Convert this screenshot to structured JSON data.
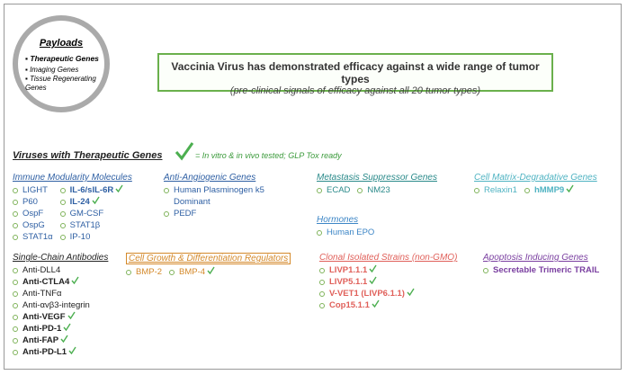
{
  "payloads": {
    "title": "Payloads",
    "items": [
      "Therapeutic Genes",
      "Imaging Genes",
      "Tissue Regenerating Genes"
    ]
  },
  "headline": {
    "title": "Vaccinia Virus has demonstrated efficacy against a wide range of tumor types",
    "subtitle": "(pre-clinical signals of efficacy against all 20 tumor types)"
  },
  "section": {
    "title": "Viruses with Therapeutic Genes",
    "legend": "= In vitro & in vivo tested; GLP Tox ready"
  },
  "groups": [
    {
      "title": "Immune Modularity Molecules",
      "color": "#2e5fa3",
      "columns": [
        [
          {
            "label": "LIGHT"
          },
          {
            "label": "P60"
          },
          {
            "label": "OspF"
          },
          {
            "label": "OspG"
          },
          {
            "label": "STAT1α"
          }
        ],
        [
          {
            "label": "IL-6/sIL-6R",
            "bold": true,
            "check": true
          },
          {
            "label": "IL-24",
            "bold": true,
            "check": true
          },
          {
            "label": "GM-CSF"
          },
          {
            "label": "STAT1β"
          },
          {
            "label": "IP-10"
          }
        ]
      ]
    },
    {
      "title": "Anti-Angiogenic Genes",
      "color": "#2e5fa3",
      "columns": [
        [
          {
            "label": "Human Plasminogen k5 Dominant"
          },
          {
            "label": "PEDF"
          }
        ]
      ]
    },
    {
      "title": "Metastasis Suppressor Genes",
      "color": "#2a8a8a",
      "columns": [
        [
          {
            "label": "ECAD"
          }
        ],
        [
          {
            "label": "NM23"
          }
        ]
      ]
    },
    {
      "title": "Cell Matrix-Degradative Genes",
      "color": "#4fb3c2",
      "columns": [
        [
          {
            "label": "Relaxin1"
          }
        ],
        [
          {
            "label": "hMMP9",
            "bold": true,
            "check": true
          }
        ]
      ]
    },
    {
      "title": "Hormones",
      "color": "#3d86c6",
      "columns": [
        [
          {
            "label": "Human EPO"
          }
        ]
      ]
    },
    {
      "title": "Single-Chain Antibodies",
      "color": "#222222",
      "columns": [
        [
          {
            "label": "Anti-DLL4"
          },
          {
            "label": "Anti-CTLA4",
            "bold": true,
            "check": true
          },
          {
            "label": "Anti-TNFα"
          },
          {
            "label": "Anti-αvβ3-integrin"
          },
          {
            "label": "Anti-VEGF",
            "bold": true,
            "check": true
          },
          {
            "label": "Anti-PD-1",
            "bold": true,
            "check": true
          },
          {
            "label": "Anti-FAP",
            "bold": true,
            "check": true
          },
          {
            "label": "Anti-PD-L1",
            "bold": true,
            "check": true
          }
        ]
      ]
    },
    {
      "title": "Cell Growth & Differentiation Regulators",
      "color": "#d4892a",
      "columns": [
        [
          {
            "label": "BMP-2"
          }
        ],
        [
          {
            "label": "BMP-4",
            "check": true
          }
        ]
      ]
    },
    {
      "title": "Clonal Isolated Strains (non-GMO)",
      "color": "#e0605a",
      "columns": [
        [
          {
            "label": "LIVP1.1.1",
            "bold": true,
            "check": true
          },
          {
            "label": "LIVP5.1.1",
            "bold": true,
            "check": true
          },
          {
            "label": "V-VET1 (LIVP6.1.1)",
            "bold": true,
            "check": true
          },
          {
            "label": "Cop15.1.1",
            "bold": true,
            "check": true
          }
        ]
      ]
    },
    {
      "title": "Apoptosis Inducing Genes",
      "color": "#7a3fa0",
      "columns": [
        [
          {
            "label": "Secretable Trimeric TRAIL",
            "bold": true
          }
        ]
      ]
    }
  ]
}
